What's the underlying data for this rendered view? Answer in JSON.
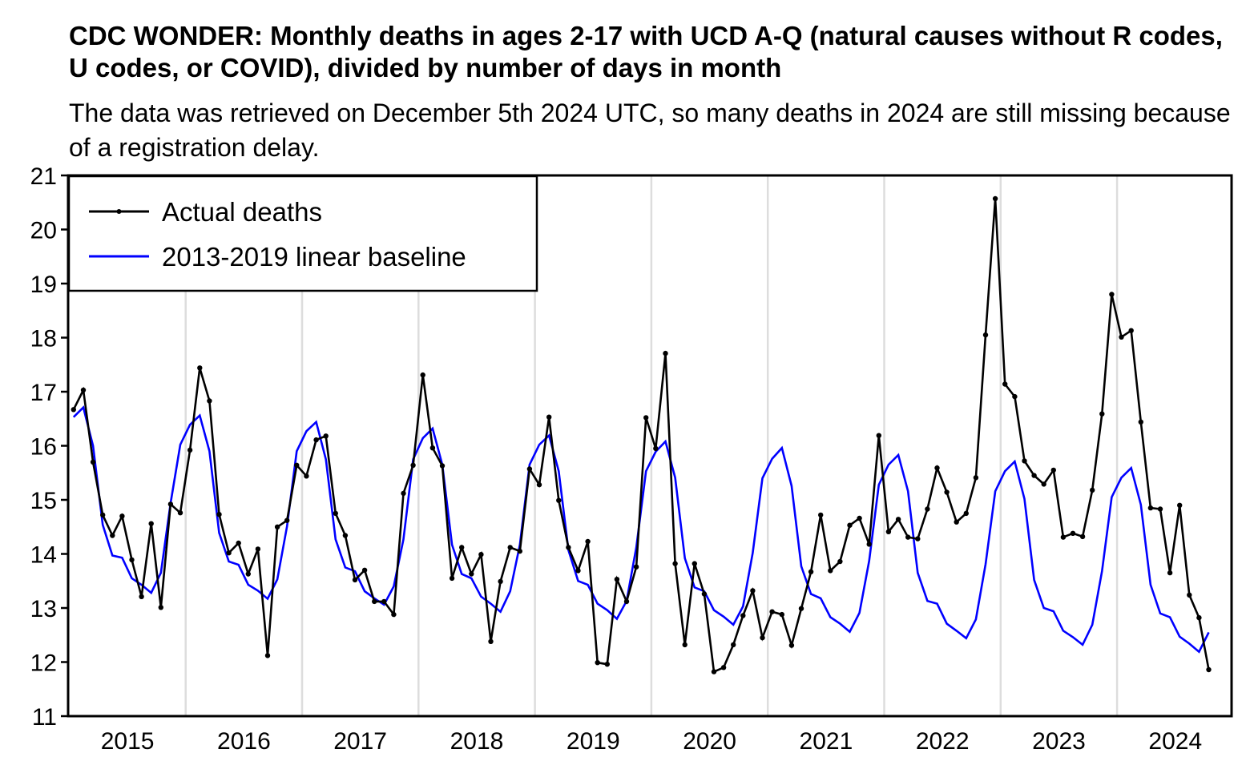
{
  "chart_data": {
    "type": "line",
    "title": "CDC WONDER: Monthly deaths in ages 2-17 with UCD A-Q (natural causes without R codes, U codes, or COVID), divided by number of days in month",
    "subtitle": "The data was retrieved on December 5th 2024 UTC, so many deaths in 2024 are still missing because of a registration delay.",
    "xlabel": "",
    "ylabel": "",
    "x_start": "2015-01",
    "x_end": "2024-10",
    "x_unit": "month",
    "xlim": [
      "2015-01",
      "2024-12"
    ],
    "ylim": [
      11,
      21
    ],
    "yticks": [
      11,
      12,
      13,
      14,
      15,
      16,
      17,
      18,
      19,
      20,
      21
    ],
    "xticks": [
      "2015",
      "2016",
      "2017",
      "2018",
      "2019",
      "2020",
      "2021",
      "2022",
      "2023",
      "2024"
    ],
    "grid": "vertical lines at year boundaries",
    "legend_position": "top-left",
    "series": [
      {
        "name": "Actual deaths",
        "color": "#000000",
        "markers": true,
        "values": [
          16.67,
          17.03,
          15.7,
          14.72,
          14.34,
          14.7,
          13.89,
          13.21,
          14.56,
          13.01,
          14.92,
          14.76,
          15.92,
          17.44,
          16.83,
          14.73,
          14.02,
          14.2,
          13.63,
          14.09,
          12.12,
          14.5,
          14.62,
          15.64,
          15.44,
          16.11,
          16.18,
          14.75,
          14.34,
          13.52,
          13.7,
          13.12,
          13.12,
          12.88,
          15.12,
          15.64,
          17.31,
          15.96,
          15.63,
          13.55,
          14.12,
          13.63,
          13.99,
          12.38,
          13.49,
          14.12,
          14.05,
          15.57,
          15.28,
          16.53,
          14.99,
          14.12,
          13.69,
          14.23,
          11.99,
          11.96,
          13.53,
          13.12,
          13.76,
          16.52,
          15.95,
          17.71,
          13.82,
          12.32,
          13.82,
          13.26,
          11.82,
          11.9,
          12.32,
          12.86,
          13.32,
          12.45,
          12.93,
          12.88,
          12.31,
          12.99,
          13.67,
          14.72,
          13.69,
          13.86,
          14.53,
          14.66,
          14.18,
          16.19,
          14.41,
          14.64,
          14.31,
          14.28,
          14.83,
          15.59,
          15.14,
          14.59,
          14.75,
          15.41,
          18.05,
          20.57,
          17.14,
          16.91,
          15.72,
          15.45,
          15.29,
          15.55,
          14.31,
          14.38,
          14.32,
          15.18,
          16.59,
          18.8,
          18.01,
          18.13,
          16.44,
          14.85,
          14.83,
          13.65,
          14.9,
          13.24,
          12.82,
          11.86
        ]
      },
      {
        "name": "2013-2019 linear baseline",
        "color": "#0000ff",
        "markers": false,
        "values": [
          16.53,
          16.71,
          16.0,
          14.54,
          13.97,
          13.93,
          13.55,
          13.43,
          13.28,
          13.65,
          14.94,
          16.02,
          16.39,
          16.56,
          15.9,
          14.39,
          13.86,
          13.8,
          13.43,
          13.32,
          13.17,
          13.53,
          14.51,
          15.9,
          16.27,
          16.44,
          15.75,
          14.27,
          13.75,
          13.68,
          13.31,
          13.18,
          13.06,
          13.4,
          14.27,
          15.75,
          16.14,
          16.32,
          15.65,
          14.17,
          13.63,
          13.55,
          13.21,
          13.08,
          12.93,
          13.31,
          14.17,
          15.65,
          16.02,
          16.19,
          15.53,
          14.07,
          13.5,
          13.43,
          13.08,
          12.96,
          12.8,
          13.13,
          14.12,
          15.53,
          15.89,
          16.08,
          15.41,
          13.92,
          13.38,
          13.31,
          12.96,
          12.84,
          12.69,
          13.03,
          14.02,
          15.4,
          15.76,
          15.96,
          15.26,
          13.77,
          13.26,
          13.18,
          12.83,
          12.71,
          12.56,
          12.91,
          13.87,
          15.28,
          15.65,
          15.83,
          15.16,
          13.65,
          13.13,
          13.08,
          12.71,
          12.58,
          12.44,
          12.79,
          13.81,
          15.16,
          15.53,
          15.71,
          15.02,
          13.52,
          13.0,
          12.94,
          12.58,
          12.46,
          12.32,
          12.69,
          13.68,
          15.05,
          15.41,
          15.59,
          14.91,
          13.43,
          12.9,
          12.83,
          12.47,
          12.34,
          12.19,
          12.55
        ]
      }
    ]
  }
}
